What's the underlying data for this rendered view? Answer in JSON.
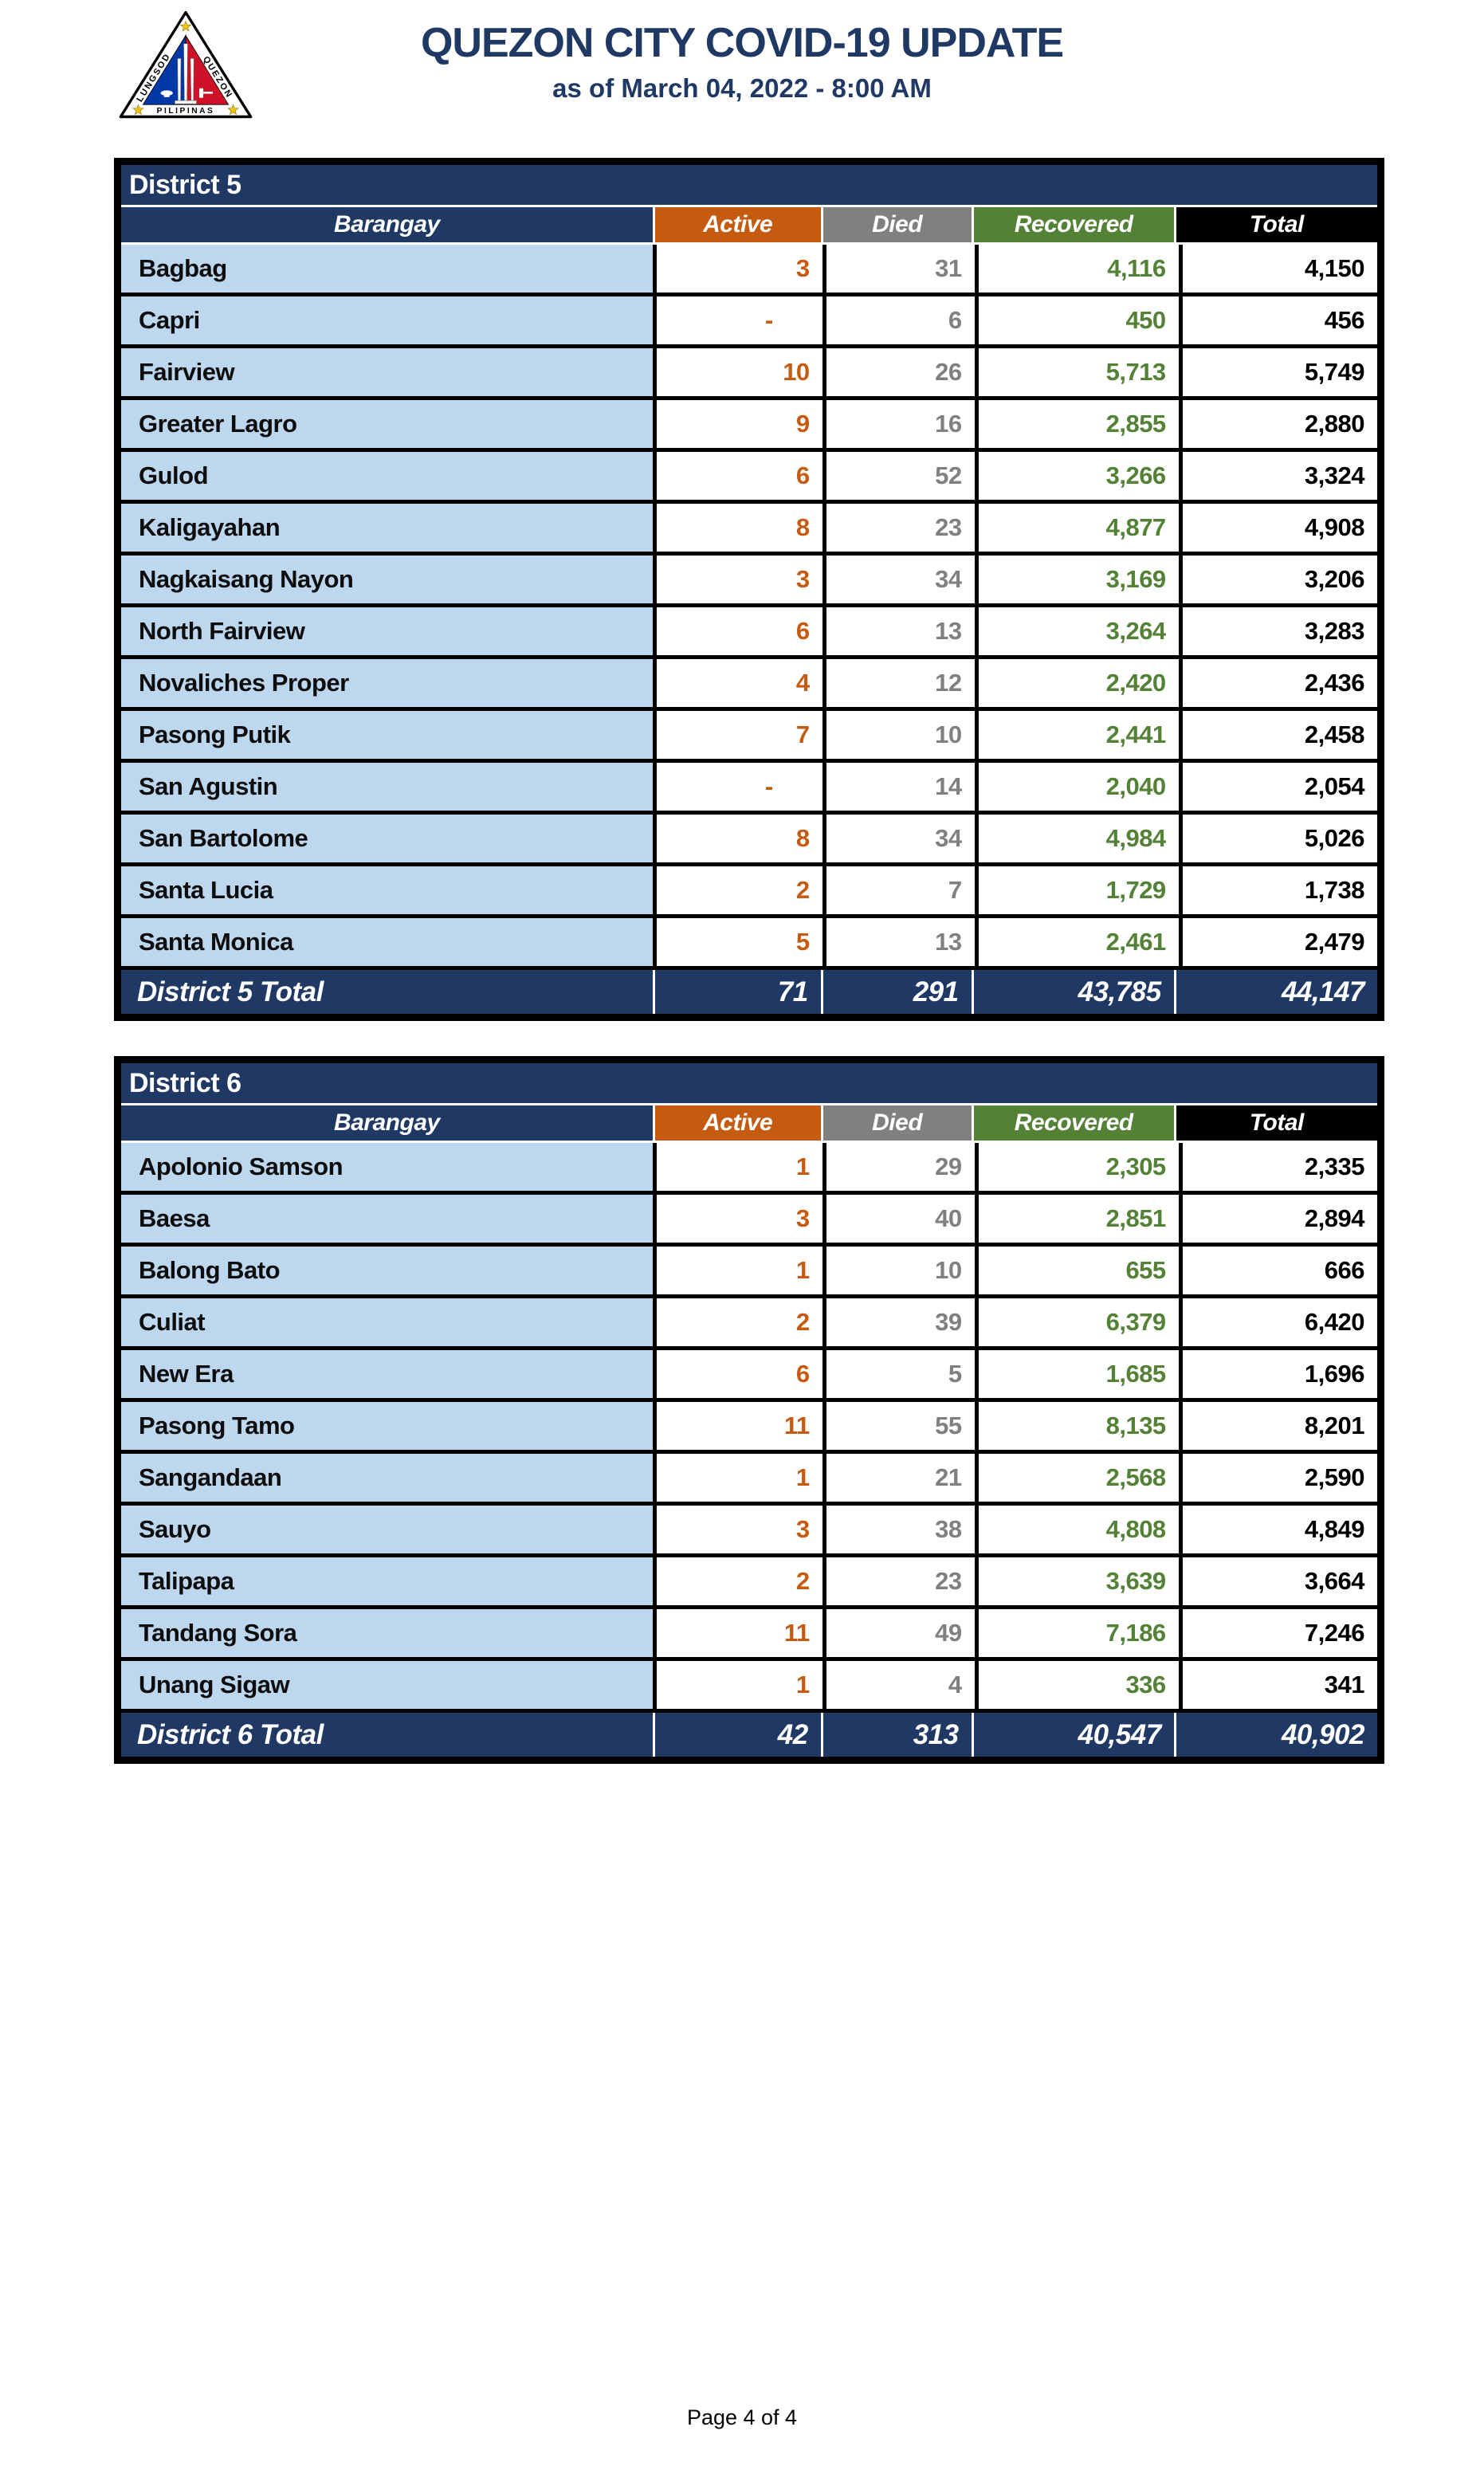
{
  "header": {
    "title": "QUEZON CITY COVID-19 UPDATE",
    "subtitle": "as of March 04, 2022 - 8:00 AM",
    "logo": {
      "text_left": "LUNGSOD",
      "text_right": "QUEZON",
      "text_bottom": "PILIPINAS"
    }
  },
  "columns": [
    "Barangay",
    "Active",
    "Died",
    "Recovered",
    "Total"
  ],
  "colors": {
    "navy": "#1F3864",
    "light_blue": "#BDD7EE",
    "orange": "#C55A11",
    "gray": "#808080",
    "green": "#538135",
    "header_black": "#000000",
    "title_blue": "#1F3864",
    "star_yellow": "#F0C30F",
    "flag_blue": "#0038A8",
    "flag_red": "#CE1126"
  },
  "tables": [
    {
      "district": "District 5",
      "rows": [
        {
          "barangay": "Bagbag",
          "active": "3",
          "died": "31",
          "recovered": "4,116",
          "total": "4,150"
        },
        {
          "barangay": "Capri",
          "active": "-",
          "died": "6",
          "recovered": "450",
          "total": "456"
        },
        {
          "barangay": "Fairview",
          "active": "10",
          "died": "26",
          "recovered": "5,713",
          "total": "5,749"
        },
        {
          "barangay": "Greater Lagro",
          "active": "9",
          "died": "16",
          "recovered": "2,855",
          "total": "2,880"
        },
        {
          "barangay": "Gulod",
          "active": "6",
          "died": "52",
          "recovered": "3,266",
          "total": "3,324"
        },
        {
          "barangay": "Kaligayahan",
          "active": "8",
          "died": "23",
          "recovered": "4,877",
          "total": "4,908"
        },
        {
          "barangay": "Nagkaisang Nayon",
          "active": "3",
          "died": "34",
          "recovered": "3,169",
          "total": "3,206"
        },
        {
          "barangay": "North Fairview",
          "active": "6",
          "died": "13",
          "recovered": "3,264",
          "total": "3,283"
        },
        {
          "barangay": "Novaliches Proper",
          "active": "4",
          "died": "12",
          "recovered": "2,420",
          "total": "2,436"
        },
        {
          "barangay": "Pasong Putik",
          "active": "7",
          "died": "10",
          "recovered": "2,441",
          "total": "2,458"
        },
        {
          "barangay": "San Agustin",
          "active": "-",
          "died": "14",
          "recovered": "2,040",
          "total": "2,054"
        },
        {
          "barangay": "San Bartolome",
          "active": "8",
          "died": "34",
          "recovered": "4,984",
          "total": "5,026"
        },
        {
          "barangay": "Santa Lucia",
          "active": "2",
          "died": "7",
          "recovered": "1,729",
          "total": "1,738"
        },
        {
          "barangay": "Santa Monica",
          "active": "5",
          "died": "13",
          "recovered": "2,461",
          "total": "2,479"
        }
      ],
      "total": {
        "label": "District 5 Total",
        "active": "71",
        "died": "291",
        "recovered": "43,785",
        "total": "44,147"
      }
    },
    {
      "district": "District 6",
      "rows": [
        {
          "barangay": "Apolonio Samson",
          "active": "1",
          "died": "29",
          "recovered": "2,305",
          "total": "2,335"
        },
        {
          "barangay": "Baesa",
          "active": "3",
          "died": "40",
          "recovered": "2,851",
          "total": "2,894"
        },
        {
          "barangay": "Balong Bato",
          "active": "1",
          "died": "10",
          "recovered": "655",
          "total": "666"
        },
        {
          "barangay": "Culiat",
          "active": "2",
          "died": "39",
          "recovered": "6,379",
          "total": "6,420"
        },
        {
          "barangay": "New Era",
          "active": "6",
          "died": "5",
          "recovered": "1,685",
          "total": "1,696"
        },
        {
          "barangay": "Pasong Tamo",
          "active": "11",
          "died": "55",
          "recovered": "8,135",
          "total": "8,201"
        },
        {
          "barangay": "Sangandaan",
          "active": "1",
          "died": "21",
          "recovered": "2,568",
          "total": "2,590"
        },
        {
          "barangay": "Sauyo",
          "active": "3",
          "died": "38",
          "recovered": "4,808",
          "total": "4,849"
        },
        {
          "barangay": "Talipapa",
          "active": "2",
          "died": "23",
          "recovered": "3,639",
          "total": "3,664"
        },
        {
          "barangay": "Tandang Sora",
          "active": "11",
          "died": "49",
          "recovered": "7,186",
          "total": "7,246"
        },
        {
          "barangay": "Unang Sigaw",
          "active": "1",
          "died": "4",
          "recovered": "336",
          "total": "341"
        }
      ],
      "total": {
        "label": "District 6 Total",
        "active": "42",
        "died": "313",
        "recovered": "40,547",
        "total": "40,902"
      }
    }
  ],
  "footer": {
    "page_label": "Page 4 of 4"
  }
}
